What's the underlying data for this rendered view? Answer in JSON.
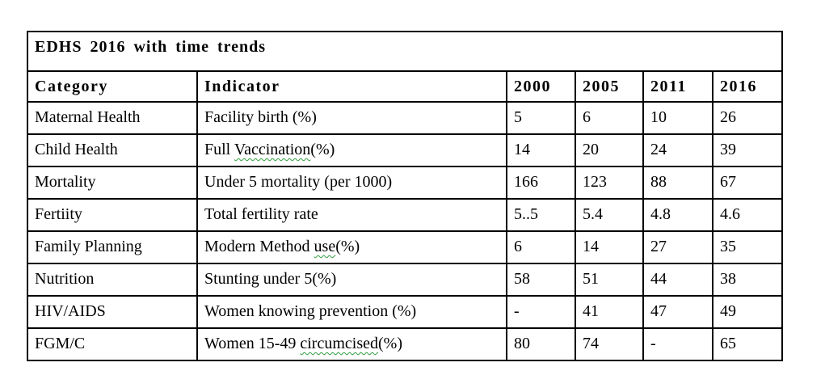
{
  "title": "EDHS 2016 with time trends",
  "table": {
    "columns": [
      "Category",
      "Indicator",
      "2000",
      "2005",
      "2011",
      "2016"
    ],
    "rows": [
      {
        "category": "Maternal Health",
        "indicator": [
          {
            "t": "Facility birth (%)"
          }
        ],
        "values": [
          "5",
          "6",
          "10",
          "26"
        ]
      },
      {
        "category": "Child Health",
        "indicator": [
          {
            "t": "Full "
          },
          {
            "t": "Vaccination",
            "u": true
          },
          {
            "t": "(%)"
          }
        ],
        "values": [
          "14",
          "20",
          "24",
          "39"
        ]
      },
      {
        "category": "Mortality",
        "indicator": [
          {
            "t": "Under 5 mortality (per 1000)"
          }
        ],
        "values": [
          "166",
          "123",
          "88",
          "67"
        ]
      },
      {
        "category": "Fertiity",
        "indicator": [
          {
            "t": "Total fertility rate"
          }
        ],
        "values": [
          "5..5",
          "5.4",
          "4.8",
          "4.6"
        ]
      },
      {
        "category": "Family Planning",
        "indicator": [
          {
            "t": "Modern Method "
          },
          {
            "t": "use",
            "u": true
          },
          {
            "t": "(%)"
          }
        ],
        "values": [
          "6",
          "14",
          "27",
          "35"
        ]
      },
      {
        "category": "Nutrition",
        "indicator": [
          {
            "t": "Stunting under 5(%)"
          }
        ],
        "values": [
          "58",
          "51",
          "44",
          "38"
        ]
      },
      {
        "category": "HIV/AIDS",
        "indicator": [
          {
            "t": "Women knowing prevention (%)"
          }
        ],
        "values": [
          "-",
          "41",
          "47",
          "49"
        ]
      },
      {
        "category": "FGM/C",
        "indicator": [
          {
            "t": "Women 15-49 "
          },
          {
            "t": "circumcised",
            "u": true
          },
          {
            "t": "(%)"
          }
        ],
        "values": [
          "80",
          "74",
          "-",
          "65"
        ]
      }
    ]
  },
  "colors": {
    "border": "#000000",
    "text": "#000000",
    "background": "#ffffff",
    "spellcheck_squiggle": "#2f9e3f"
  }
}
